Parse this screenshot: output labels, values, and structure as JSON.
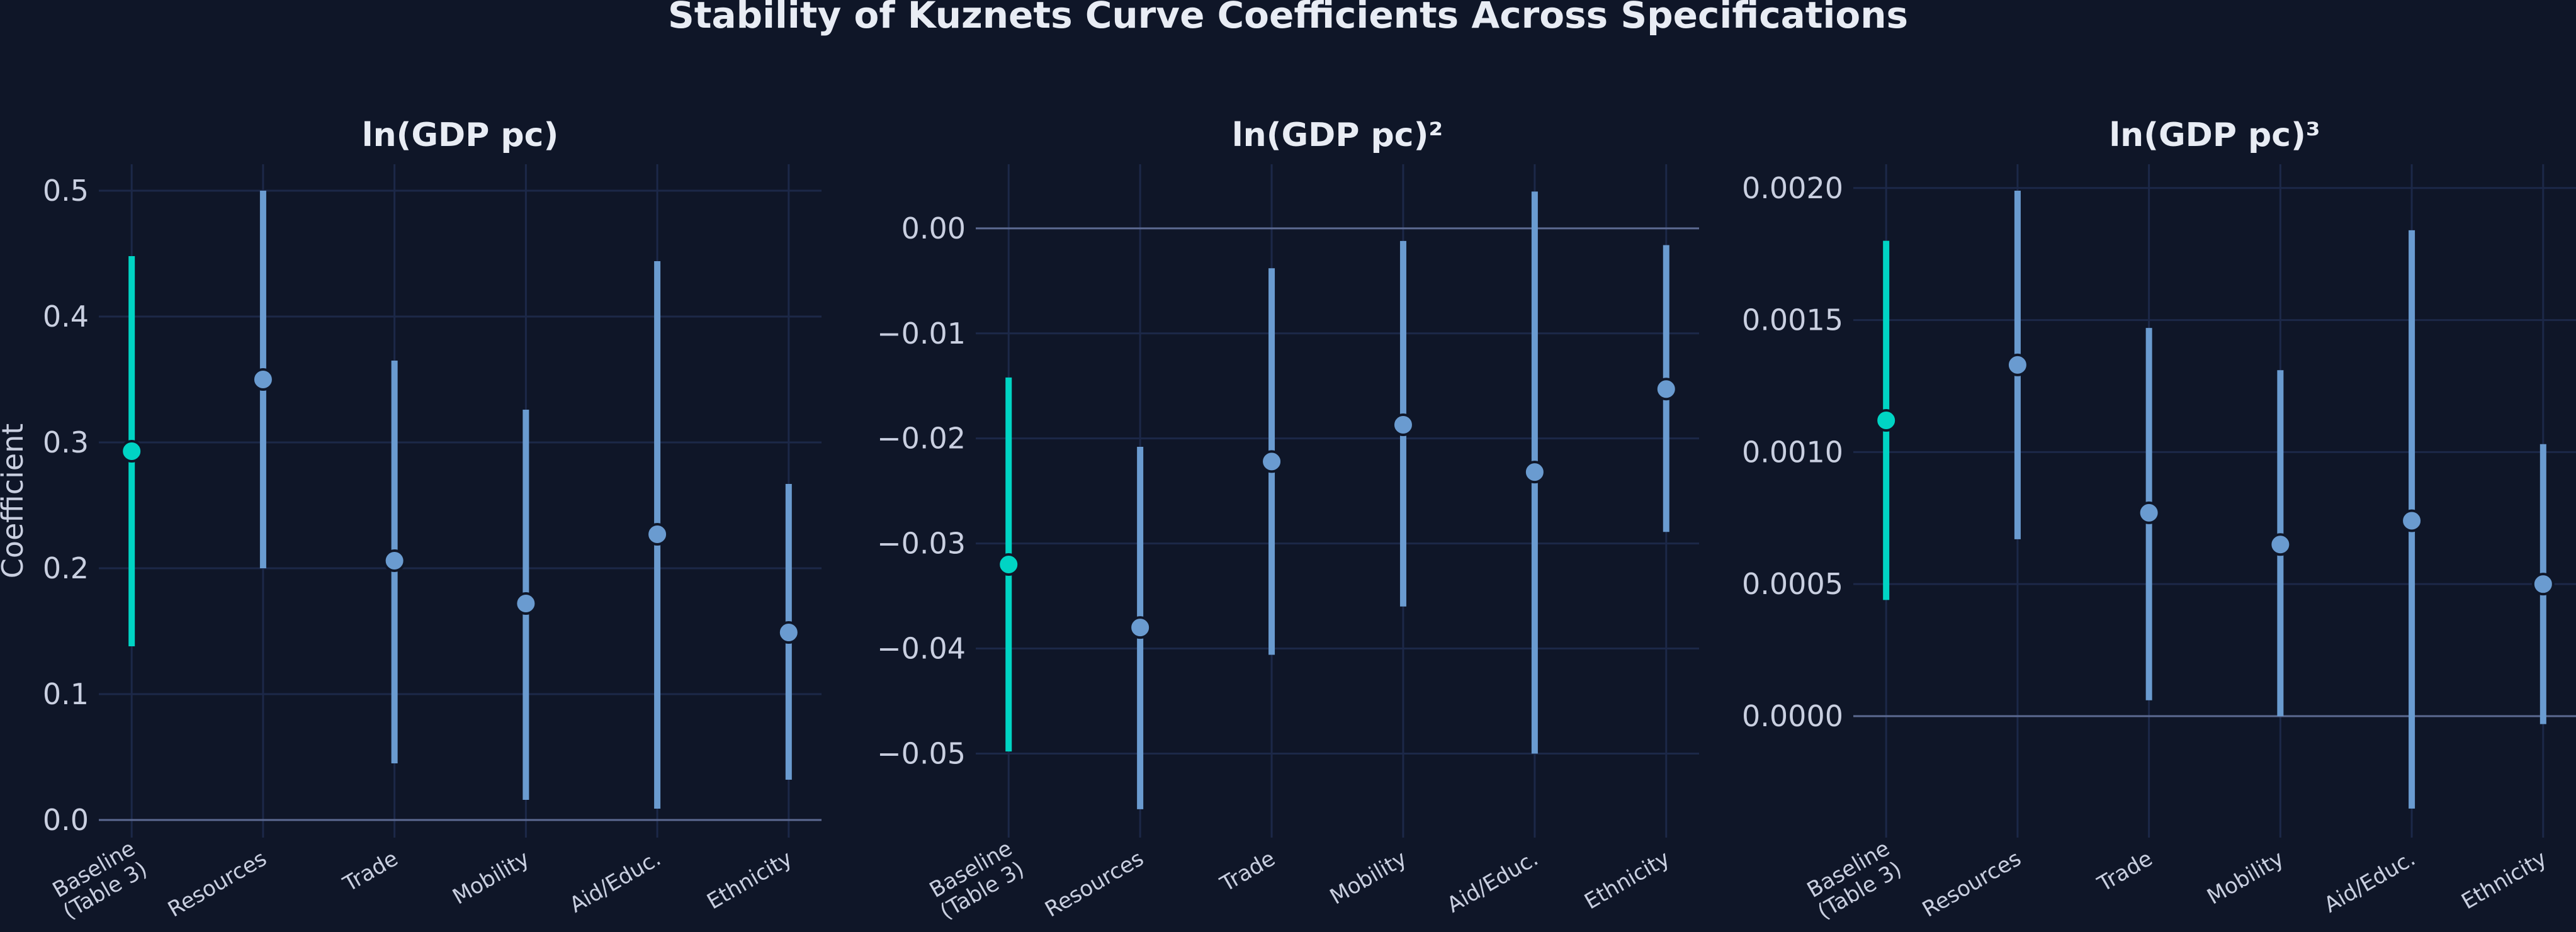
{
  "chart_data": {
    "type": "errorbar",
    "title": "Stability of Kuznets Curve Coefficients Across Specifications",
    "ylabel": "Coefficient",
    "categories": [
      "Baseline\n(Table 3)",
      "Resources",
      "Trade",
      "Mobility",
      "Aid/Educ.",
      "Ethnicity"
    ],
    "colors": {
      "background": "#0f1628",
      "grid": "#1c2848",
      "zero_line": "#5c6a92",
      "baseline": "#00d4c4",
      "other": "#6a9bd0",
      "text": "#c9cfe0"
    },
    "grid": true,
    "panels": [
      {
        "title": "ln(GDP pc)",
        "ylim": [
          -0.014,
          0.521
        ],
        "yticks": [
          0.0,
          0.1,
          0.2,
          0.3,
          0.4,
          0.5
        ],
        "ytick_labels": [
          "0.0",
          "0.1",
          "0.2",
          "0.3",
          "0.4",
          "0.5"
        ],
        "estimates": [
          0.293,
          0.35,
          0.206,
          0.172,
          0.227,
          0.149
        ],
        "ci_low": [
          0.138,
          0.2,
          0.045,
          0.016,
          0.009,
          0.032
        ],
        "ci_high": [
          0.448,
          0.5,
          0.365,
          0.326,
          0.444,
          0.267
        ]
      },
      {
        "title": "ln(GDP pc)²",
        "ylim": [
          -0.058,
          0.0061
        ],
        "yticks": [
          0.0,
          -0.01,
          -0.02,
          -0.03,
          -0.04,
          -0.05
        ],
        "ytick_labels": [
          "0.00",
          "−0.01",
          "−0.02",
          "−0.03",
          "−0.04",
          "−0.05"
        ],
        "estimates": [
          -0.032,
          -0.038,
          -0.0222,
          -0.0187,
          -0.0232,
          -0.0153
        ],
        "ci_low": [
          -0.0498,
          -0.0553,
          -0.0406,
          -0.036,
          -0.05,
          -0.0289
        ],
        "ci_high": [
          -0.0142,
          -0.0208,
          -0.0038,
          -0.0012,
          0.0035,
          -0.0016
        ]
      },
      {
        "title": "ln(GDP pc)³",
        "ylim": [
          -0.00046,
          0.00209
        ],
        "yticks": [
          0.0,
          0.0005,
          0.001,
          0.0015,
          0.002
        ],
        "ytick_labels": [
          "0.0000",
          "0.0005",
          "0.0010",
          "0.0015",
          "0.0020"
        ],
        "estimates": [
          0.00112,
          0.00133,
          0.00077,
          0.00065,
          0.00074,
          0.0005
        ],
        "ci_low": [
          0.00044,
          0.00067,
          6e-05,
          0.0,
          -0.00035,
          -3e-05
        ],
        "ci_high": [
          0.0018,
          0.00199,
          0.00147,
          0.00131,
          0.00184,
          0.00103
        ]
      }
    ]
  }
}
